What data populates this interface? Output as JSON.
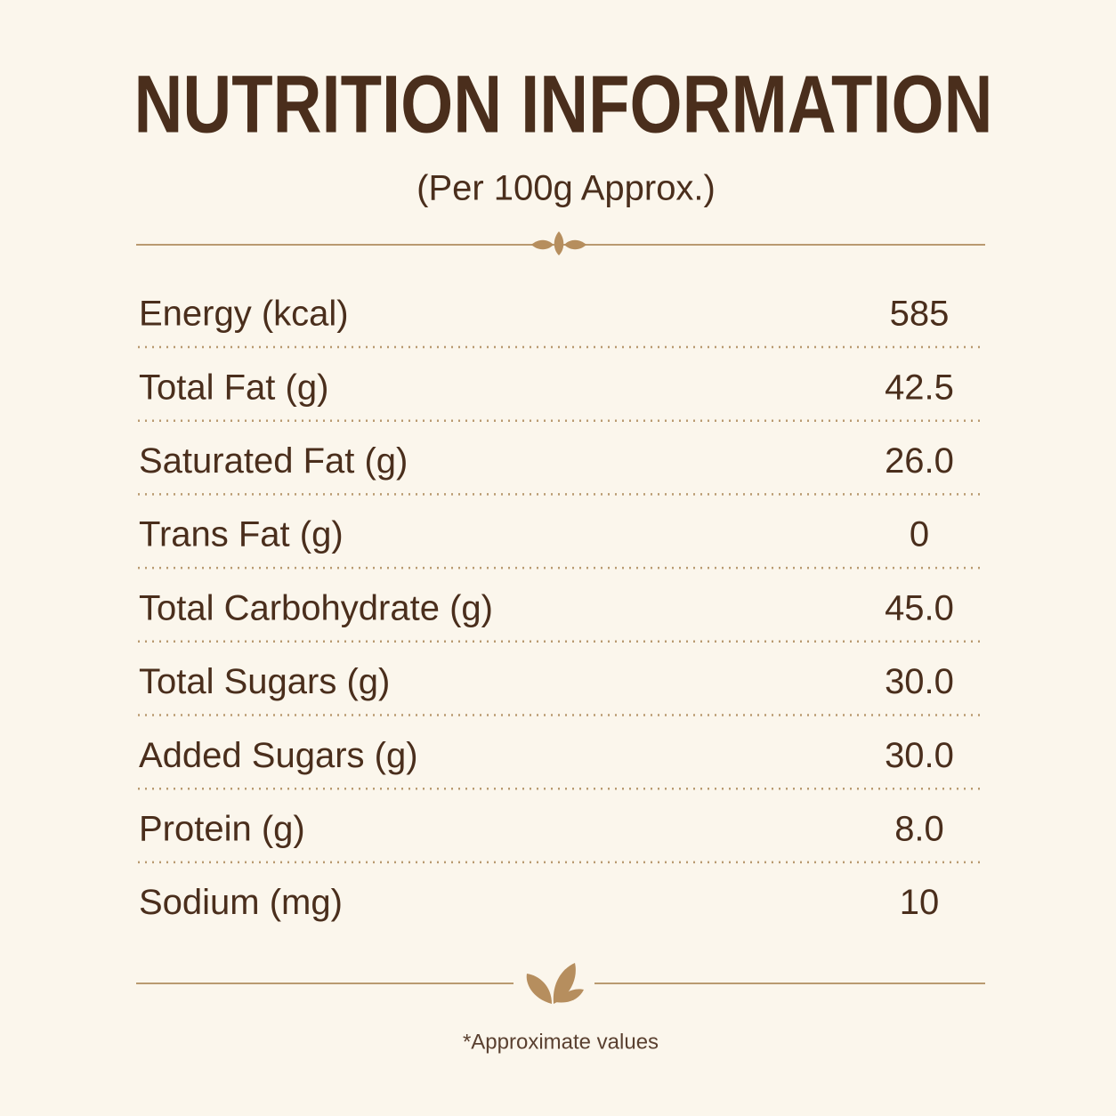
{
  "header": {
    "title": "NUTRITION INFORMATION",
    "subtitle": "(Per 100g Approx.)"
  },
  "table": {
    "rows": [
      [
        "Energy (kcal)",
        "585"
      ],
      [
        "Total Fat (g)",
        "42.5"
      ],
      [
        "Saturated Fat (g)",
        "26.0"
      ],
      [
        "Trans Fat (g)",
        "0"
      ],
      [
        "Total Carbohydrate (g)",
        "45.0"
      ],
      [
        "Total Sugars (g)",
        "30.0"
      ],
      [
        "Added Sugars (g)",
        "30.0"
      ],
      [
        "Protein (g)",
        "8.0"
      ],
      [
        "Sodium (mg)",
        "10"
      ]
    ]
  },
  "footer": {
    "note": "*Approximate values"
  }
}
